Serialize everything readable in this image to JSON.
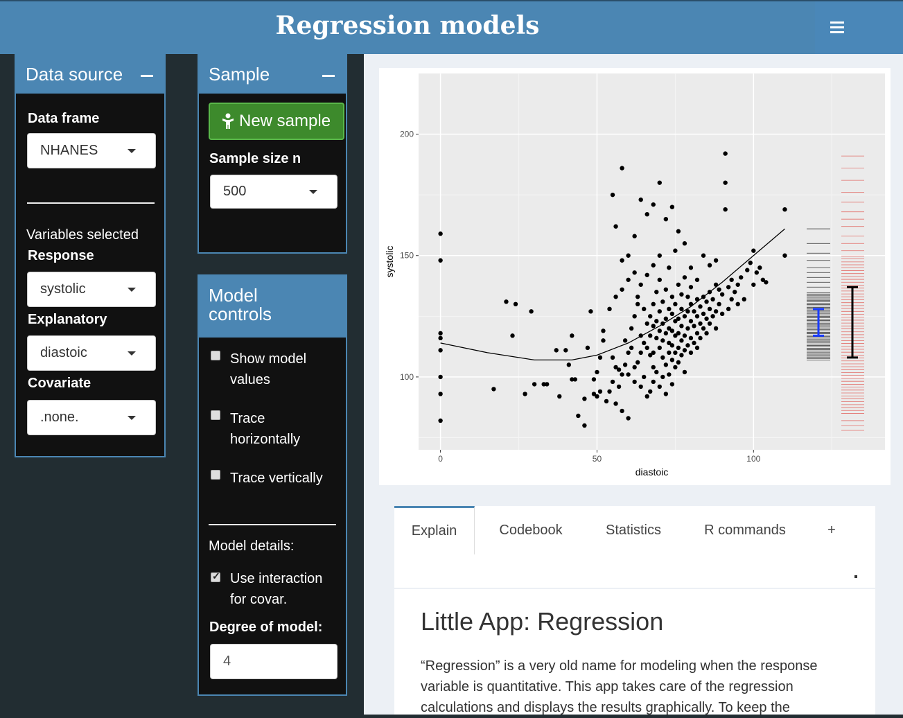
{
  "header": {
    "title": "Regression models"
  },
  "data_source": {
    "title": "Data source",
    "data_frame_label": "Data frame",
    "data_frame_value": "NHANES",
    "variables_selected_label": "Variables selected",
    "response_label": "Response",
    "response_value": "systolic",
    "explanatory_label": "Explanatory",
    "explanatory_value": "diastoic",
    "covariate_label": "Covariate",
    "covariate_value": ".none."
  },
  "sample": {
    "title": "Sample",
    "new_sample_label": "New sample",
    "size_label": "Sample size n",
    "size_value": "500"
  },
  "model_controls": {
    "title_line1": "Model",
    "title_line2": "controls",
    "show_values_l1": "Show model",
    "show_values_l2": "values",
    "trace_h_l1": "Trace",
    "trace_h_l2": "horizontally",
    "trace_v": "Trace vertically",
    "details_label": "Model details:",
    "interaction_l1": "Use interaction",
    "interaction_l2": "for covar.",
    "degree_label": "Degree of model:",
    "degree_value": "4"
  },
  "tabs": [
    "Explain",
    "Codebook",
    "Statistics",
    "R commands",
    "+"
  ],
  "explain": {
    "heading": "Little App: Regression",
    "body": "“Regression” is a very old name for modeling when the response variable is quantitative. This app takes care of the regression calculations and displays the results graphically. To keep the"
  },
  "chart_data": {
    "type": "scatter",
    "xlabel": "diastoic",
    "ylabel": "systolic",
    "x_ticks": [
      0,
      50,
      100
    ],
    "y_ticks": [
      100,
      150,
      200
    ],
    "xlim": [
      -7,
      142
    ],
    "ylim": [
      70,
      225
    ],
    "grid": true,
    "points": [
      [
        0,
        159
      ],
      [
        0,
        148
      ],
      [
        0,
        118
      ],
      [
        0,
        116
      ],
      [
        0,
        111
      ],
      [
        0,
        100
      ],
      [
        0,
        93
      ],
      [
        0,
        82
      ],
      [
        17,
        95
      ],
      [
        21,
        131
      ],
      [
        23,
        117
      ],
      [
        24,
        130
      ],
      [
        27,
        93
      ],
      [
        29,
        127
      ],
      [
        30,
        97
      ],
      [
        33,
        97
      ],
      [
        34,
        97
      ],
      [
        37,
        111
      ],
      [
        38,
        92
      ],
      [
        40,
        111
      ],
      [
        41,
        105
      ],
      [
        42,
        99
      ],
      [
        43,
        99
      ],
      [
        42,
        117
      ],
      [
        44,
        84
      ],
      [
        46,
        80
      ],
      [
        46,
        91
      ],
      [
        47,
        112
      ],
      [
        48,
        127
      ],
      [
        49,
        99
      ],
      [
        49,
        93
      ],
      [
        50,
        102
      ],
      [
        50,
        92
      ],
      [
        51,
        108
      ],
      [
        51,
        94
      ],
      [
        52,
        115
      ],
      [
        52,
        119
      ],
      [
        53,
        90
      ],
      [
        54,
        94
      ],
      [
        55,
        108
      ],
      [
        55,
        98
      ],
      [
        56,
        104
      ],
      [
        56,
        89
      ],
      [
        57,
        103
      ],
      [
        57,
        96
      ],
      [
        58,
        86
      ],
      [
        58,
        101
      ],
      [
        59,
        105
      ],
      [
        59,
        115
      ],
      [
        60,
        110
      ],
      [
        60,
        101
      ],
      [
        60,
        83
      ],
      [
        61,
        112
      ],
      [
        61,
        120
      ],
      [
        62,
        98
      ],
      [
        62,
        125
      ],
      [
        62,
        104
      ],
      [
        63,
        130
      ],
      [
        63,
        133
      ],
      [
        63,
        106
      ],
      [
        64,
        110
      ],
      [
        64,
        117
      ],
      [
        64,
        96
      ],
      [
        65,
        114
      ],
      [
        65,
        128
      ],
      [
        65,
        100
      ],
      [
        66,
        112
      ],
      [
        66,
        122
      ],
      [
        66,
        92
      ],
      [
        67,
        109
      ],
      [
        67,
        117
      ],
      [
        67,
        125
      ],
      [
        67,
        94
      ],
      [
        68,
        104
      ],
      [
        68,
        110
      ],
      [
        68,
        121
      ],
      [
        68,
        130
      ],
      [
        68,
        98
      ],
      [
        69,
        116
      ],
      [
        69,
        123
      ],
      [
        69,
        102
      ],
      [
        69,
        135
      ],
      [
        70,
        112
      ],
      [
        70,
        119
      ],
      [
        70,
        127
      ],
      [
        70,
        96
      ],
      [
        70,
        140
      ],
      [
        71,
        108
      ],
      [
        71,
        115
      ],
      [
        71,
        122
      ],
      [
        71,
        131
      ],
      [
        71,
        100
      ],
      [
        72,
        105
      ],
      [
        72,
        118
      ],
      [
        72,
        124
      ],
      [
        72,
        136
      ],
      [
        72,
        93
      ],
      [
        73,
        110
      ],
      [
        73,
        114
      ],
      [
        73,
        120
      ],
      [
        73,
        128
      ],
      [
        73,
        101
      ],
      [
        73,
        145
      ],
      [
        74,
        107
      ],
      [
        74,
        113
      ],
      [
        74,
        119
      ],
      [
        74,
        126
      ],
      [
        74,
        133
      ],
      [
        74,
        97
      ],
      [
        75,
        110
      ],
      [
        75,
        117
      ],
      [
        75,
        123
      ],
      [
        75,
        130
      ],
      [
        75,
        104
      ],
      [
        75,
        152
      ],
      [
        76,
        112
      ],
      [
        76,
        118
      ],
      [
        76,
        124
      ],
      [
        76,
        138
      ],
      [
        76,
        106
      ],
      [
        77,
        109
      ],
      [
        77,
        115
      ],
      [
        77,
        121
      ],
      [
        77,
        128
      ],
      [
        77,
        134
      ],
      [
        78,
        111
      ],
      [
        78,
        117
      ],
      [
        78,
        125
      ],
      [
        78,
        102
      ],
      [
        78,
        141
      ],
      [
        79,
        113
      ],
      [
        79,
        120
      ],
      [
        79,
        127
      ],
      [
        79,
        133
      ],
      [
        80,
        110
      ],
      [
        80,
        116
      ],
      [
        80,
        123
      ],
      [
        80,
        130
      ],
      [
        80,
        137
      ],
      [
        81,
        114
      ],
      [
        81,
        121
      ],
      [
        81,
        127
      ],
      [
        82,
        112
      ],
      [
        82,
        118
      ],
      [
        82,
        125
      ],
      [
        82,
        132
      ],
      [
        82,
        140
      ],
      [
        83,
        116
      ],
      [
        83,
        122
      ],
      [
        83,
        129
      ],
      [
        84,
        120
      ],
      [
        84,
        126
      ],
      [
        84,
        133
      ],
      [
        85,
        118
      ],
      [
        85,
        124
      ],
      [
        85,
        131
      ],
      [
        86,
        122
      ],
      [
        86,
        128
      ],
      [
        86,
        135
      ],
      [
        87,
        125
      ],
      [
        87,
        132
      ],
      [
        88,
        120
      ],
      [
        88,
        127
      ],
      [
        88,
        138
      ],
      [
        89,
        130
      ],
      [
        89,
        136
      ],
      [
        90,
        126
      ],
      [
        90,
        134
      ],
      [
        91,
        192
      ],
      [
        91,
        180
      ],
      [
        91,
        169
      ],
      [
        92,
        128
      ],
      [
        92,
        137
      ],
      [
        93,
        132
      ],
      [
        93,
        140
      ],
      [
        94,
        135
      ],
      [
        95,
        138
      ],
      [
        95,
        130
      ],
      [
        96,
        141
      ],
      [
        97,
        132
      ],
      [
        98,
        144
      ],
      [
        99,
        147
      ],
      [
        100,
        152
      ],
      [
        100,
        138
      ],
      [
        101,
        143
      ],
      [
        102,
        145
      ],
      [
        103,
        140
      ],
      [
        104,
        139
      ],
      [
        110,
        169
      ],
      [
        110,
        150
      ],
      [
        58,
        186
      ],
      [
        56,
        162
      ],
      [
        55,
        175
      ],
      [
        58,
        148
      ],
      [
        60,
        150
      ],
      [
        62,
        158
      ],
      [
        64,
        173
      ],
      [
        66,
        167
      ],
      [
        68,
        171
      ],
      [
        70,
        180
      ],
      [
        72,
        165
      ],
      [
        74,
        170
      ],
      [
        76,
        160
      ],
      [
        78,
        155
      ],
      [
        80,
        145
      ],
      [
        84,
        150
      ],
      [
        86,
        146
      ],
      [
        88,
        148
      ],
      [
        60,
        140
      ],
      [
        62,
        143
      ],
      [
        64,
        138
      ],
      [
        66,
        142
      ],
      [
        68,
        146
      ],
      [
        70,
        150
      ],
      [
        56,
        133
      ],
      [
        58,
        136
      ],
      [
        54,
        128
      ]
    ],
    "curve": [
      [
        0,
        114
      ],
      [
        15,
        110
      ],
      [
        30,
        107
      ],
      [
        42,
        107
      ],
      [
        50,
        109
      ],
      [
        60,
        114
      ],
      [
        70,
        121
      ],
      [
        80,
        129
      ],
      [
        90,
        139
      ],
      [
        100,
        150
      ],
      [
        110,
        161
      ]
    ],
    "rug_black_min": 107,
    "rug_black_max": 161,
    "rug_red_min": 78,
    "rug_red_max": 191,
    "interval_blue": [
      117,
      128,
      122
    ],
    "interval_black": [
      108,
      137,
      122
    ]
  }
}
